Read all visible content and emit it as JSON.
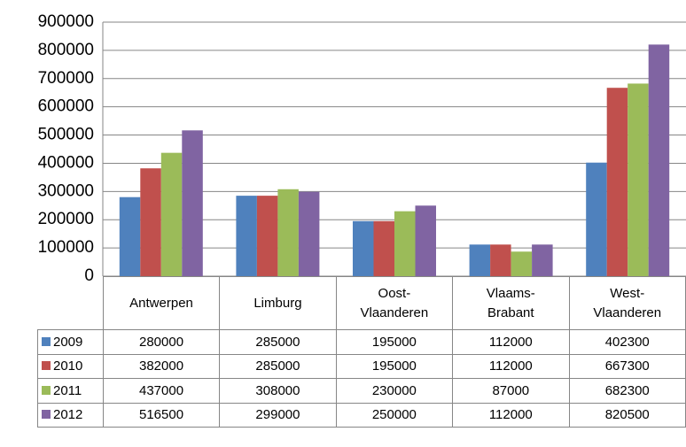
{
  "chart_data": {
    "type": "bar",
    "categories": [
      "Antwerpen",
      "Limburg",
      "Oost-Vlaanderen",
      "Vlaams-Brabant",
      "West-Vlaanderen"
    ],
    "series": [
      {
        "name": "2009",
        "color": "#4f81bd",
        "values": [
          280000,
          285000,
          195000,
          112000,
          402300
        ]
      },
      {
        "name": "2010",
        "color": "#c0504d",
        "values": [
          382000,
          285000,
          195000,
          112000,
          667300
        ]
      },
      {
        "name": "2011",
        "color": "#9bbb59",
        "values": [
          437000,
          308000,
          230000,
          87000,
          682300
        ]
      },
      {
        "name": "2012",
        "color": "#8064a2",
        "values": [
          516500,
          299000,
          250000,
          112000,
          820500
        ]
      }
    ],
    "ylim": [
      0,
      900000
    ],
    "yticks": [
      0,
      100000,
      200000,
      300000,
      400000,
      500000,
      600000,
      700000,
      800000,
      900000
    ],
    "grid": true
  }
}
